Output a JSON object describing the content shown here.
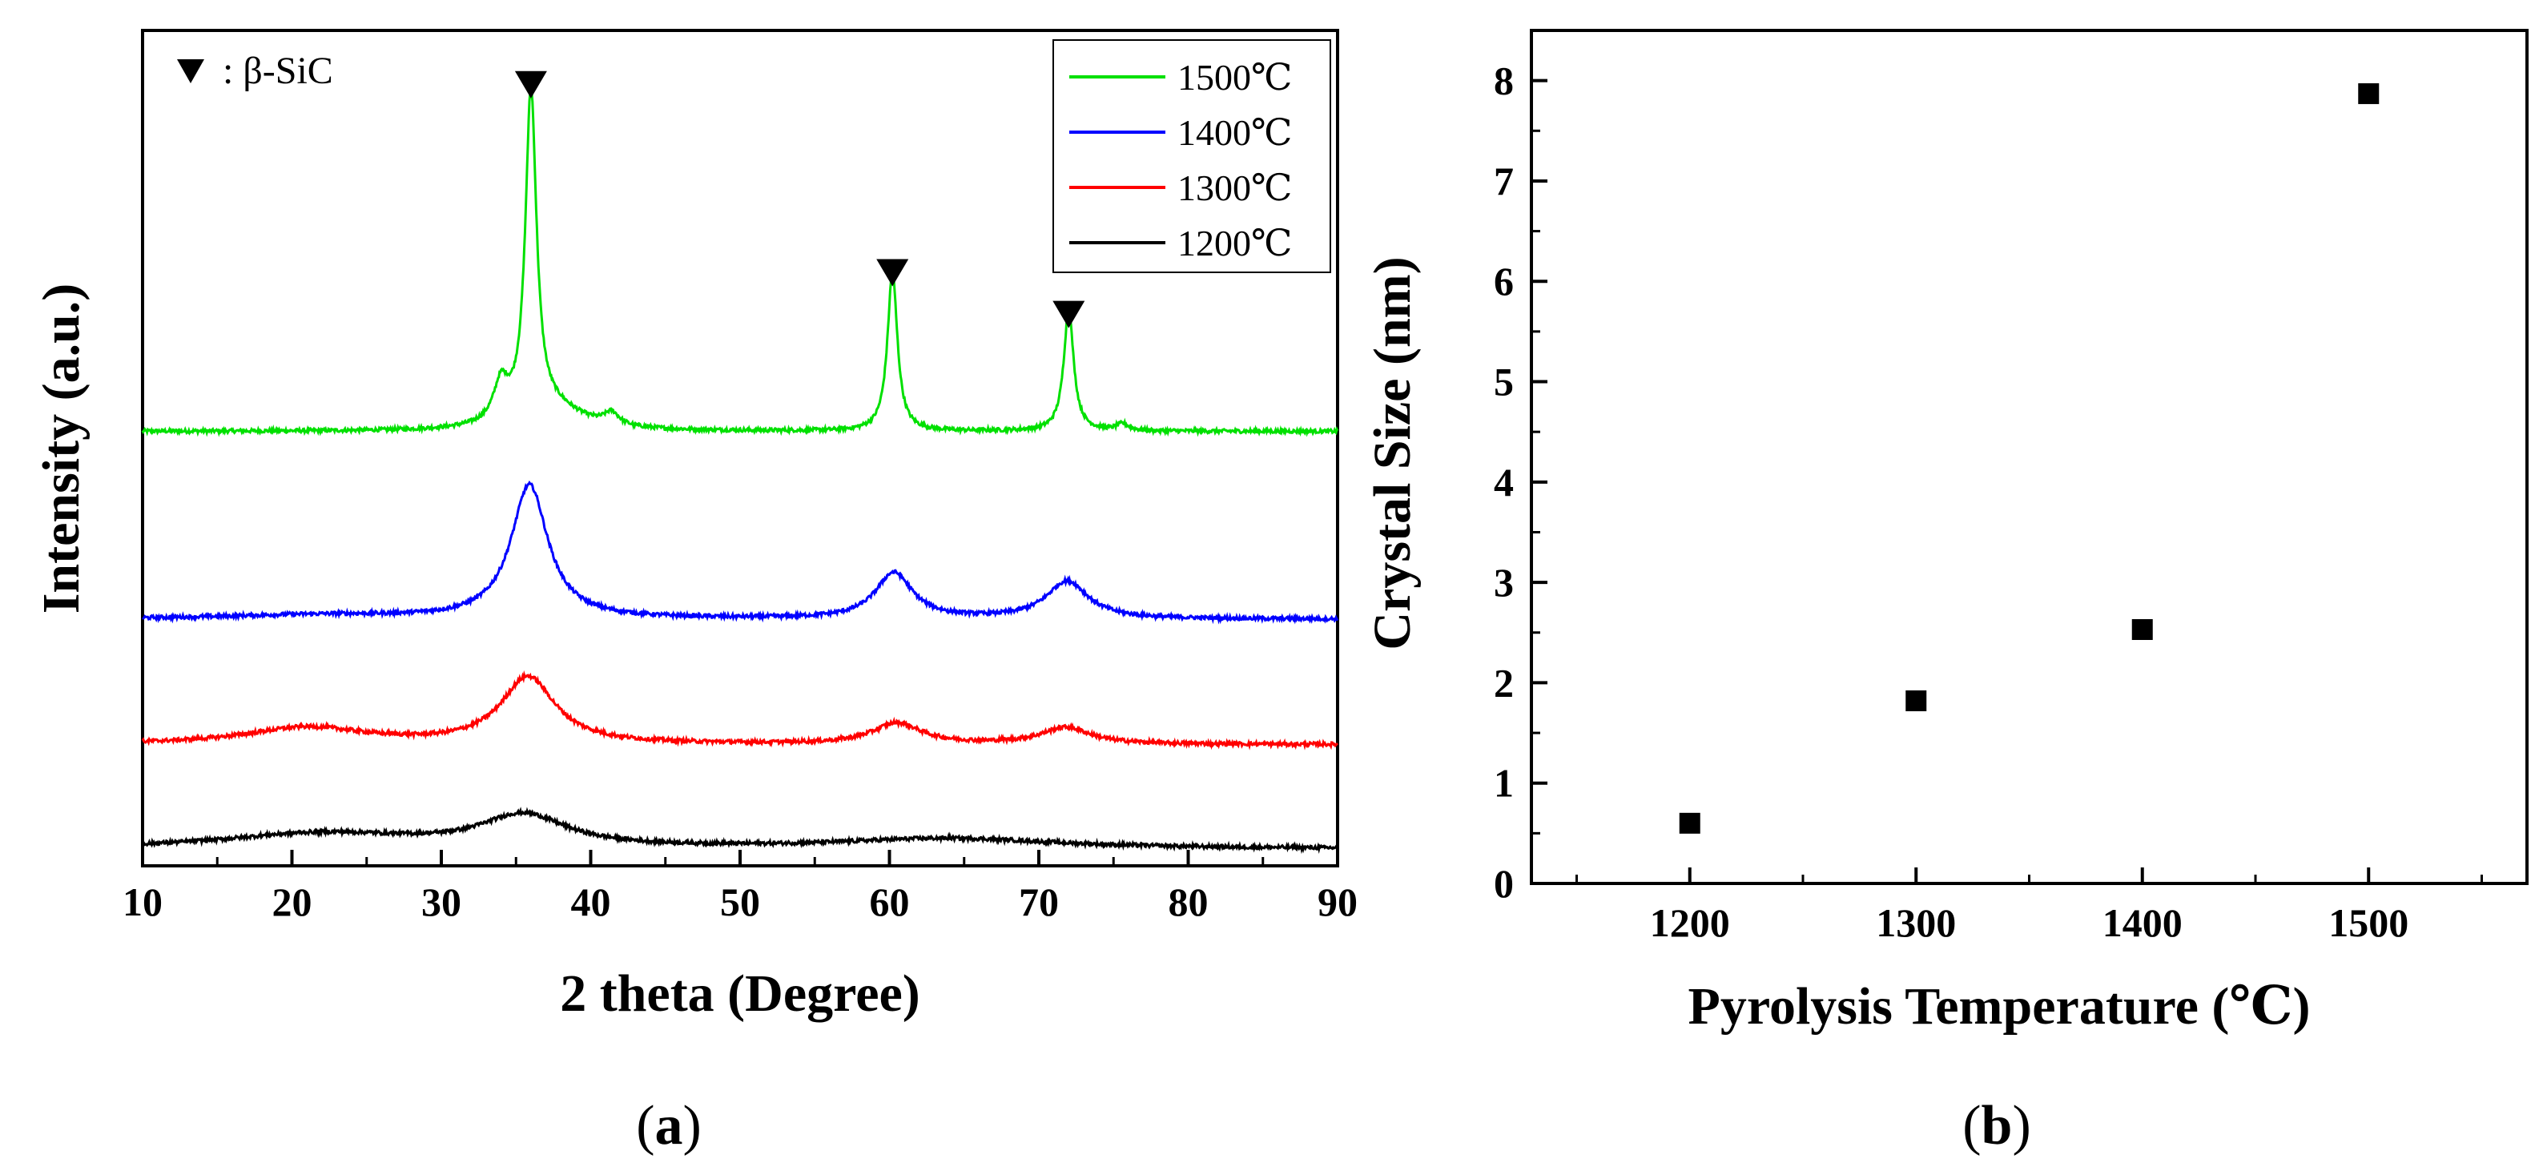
{
  "colors": {
    "s1500": "#00e000",
    "s1400": "#0000ff",
    "s1300": "#ff0000",
    "s1200": "#000000",
    "axis": "#000000"
  },
  "chart_data": [
    {
      "type": "line",
      "panel": "a",
      "panel_label": "a",
      "xlabel": "2 theta (Degree)",
      "ylabel": "Intensity (a.u.)",
      "xlim": [
        10,
        90
      ],
      "ylim": [
        0,
        10
      ],
      "xticks": [
        10,
        20,
        30,
        40,
        50,
        60,
        70,
        80,
        90
      ],
      "yticks_shown": false,
      "marker_note": ": β-SiC",
      "marker_symbol": "triangle-down",
      "marker_positions": [
        {
          "x": 36.0,
          "y": 9.35
        },
        {
          "x": 60.2,
          "y": 7.1
        },
        {
          "x": 72.0,
          "y": 6.6
        }
      ],
      "legend": [
        "1500℃",
        "1400℃",
        "1300℃",
        "1200℃"
      ],
      "series": [
        {
          "name": "1500℃",
          "color_key": "s1500",
          "baseline": 5.2,
          "peaks": [
            {
              "c": 36.0,
              "w": 0.45,
              "h": 3.9
            },
            {
              "c": 34.0,
              "w": 0.6,
              "h": 0.45
            },
            {
              "c": 60.2,
              "w": 0.4,
              "h": 1.9
            },
            {
              "c": 72.0,
              "w": 0.4,
              "h": 1.45
            },
            {
              "c": 41.4,
              "w": 0.6,
              "h": 0.15
            },
            {
              "c": 75.6,
              "w": 0.5,
              "h": 0.08
            },
            {
              "c": 37.5,
              "w": 2.5,
              "h": 0.25
            }
          ]
        },
        {
          "name": "1400℃",
          "color_key": "s1400",
          "baseline": 2.95,
          "peaks": [
            {
              "c": 35.9,
              "w": 1.5,
              "h": 1.6
            },
            {
              "c": 60.3,
              "w": 1.5,
              "h": 0.55
            },
            {
              "c": 71.9,
              "w": 1.7,
              "h": 0.45
            },
            {
              "c": 22.0,
              "w": 8.0,
              "h": 0.05
            }
          ]
        },
        {
          "name": "1300℃",
          "color_key": "s1300",
          "baseline": 1.45,
          "peaks": [
            {
              "c": 35.8,
              "w": 2.2,
              "h": 0.8
            },
            {
              "c": 21.0,
              "w": 5.0,
              "h": 0.2
            },
            {
              "c": 60.5,
              "w": 2.0,
              "h": 0.25
            },
            {
              "c": 71.8,
              "w": 2.0,
              "h": 0.2
            }
          ]
        },
        {
          "name": "1200℃",
          "color_key": "s1200",
          "baseline": 0.2,
          "peaks": [
            {
              "c": 35.5,
              "w": 3.5,
              "h": 0.38
            },
            {
              "c": 22.0,
              "w": 8.0,
              "h": 0.18
            },
            {
              "c": 64.0,
              "w": 9.0,
              "h": 0.12
            }
          ]
        }
      ]
    },
    {
      "type": "scatter",
      "panel": "b",
      "panel_label": "b",
      "xlabel": "Pyrolysis Temperature (℃)",
      "ylabel": "Crystal Size (nm)",
      "xlim": [
        1130,
        1570
      ],
      "ylim": [
        0,
        8.5
      ],
      "xticks": [
        1200,
        1300,
        1400,
        1500
      ],
      "yticks": [
        0,
        1,
        2,
        3,
        4,
        5,
        6,
        7,
        8
      ],
      "x": [
        1200,
        1300,
        1400,
        1500
      ],
      "y": [
        0.6,
        1.82,
        2.53,
        7.87
      ],
      "marker": "square"
    }
  ]
}
